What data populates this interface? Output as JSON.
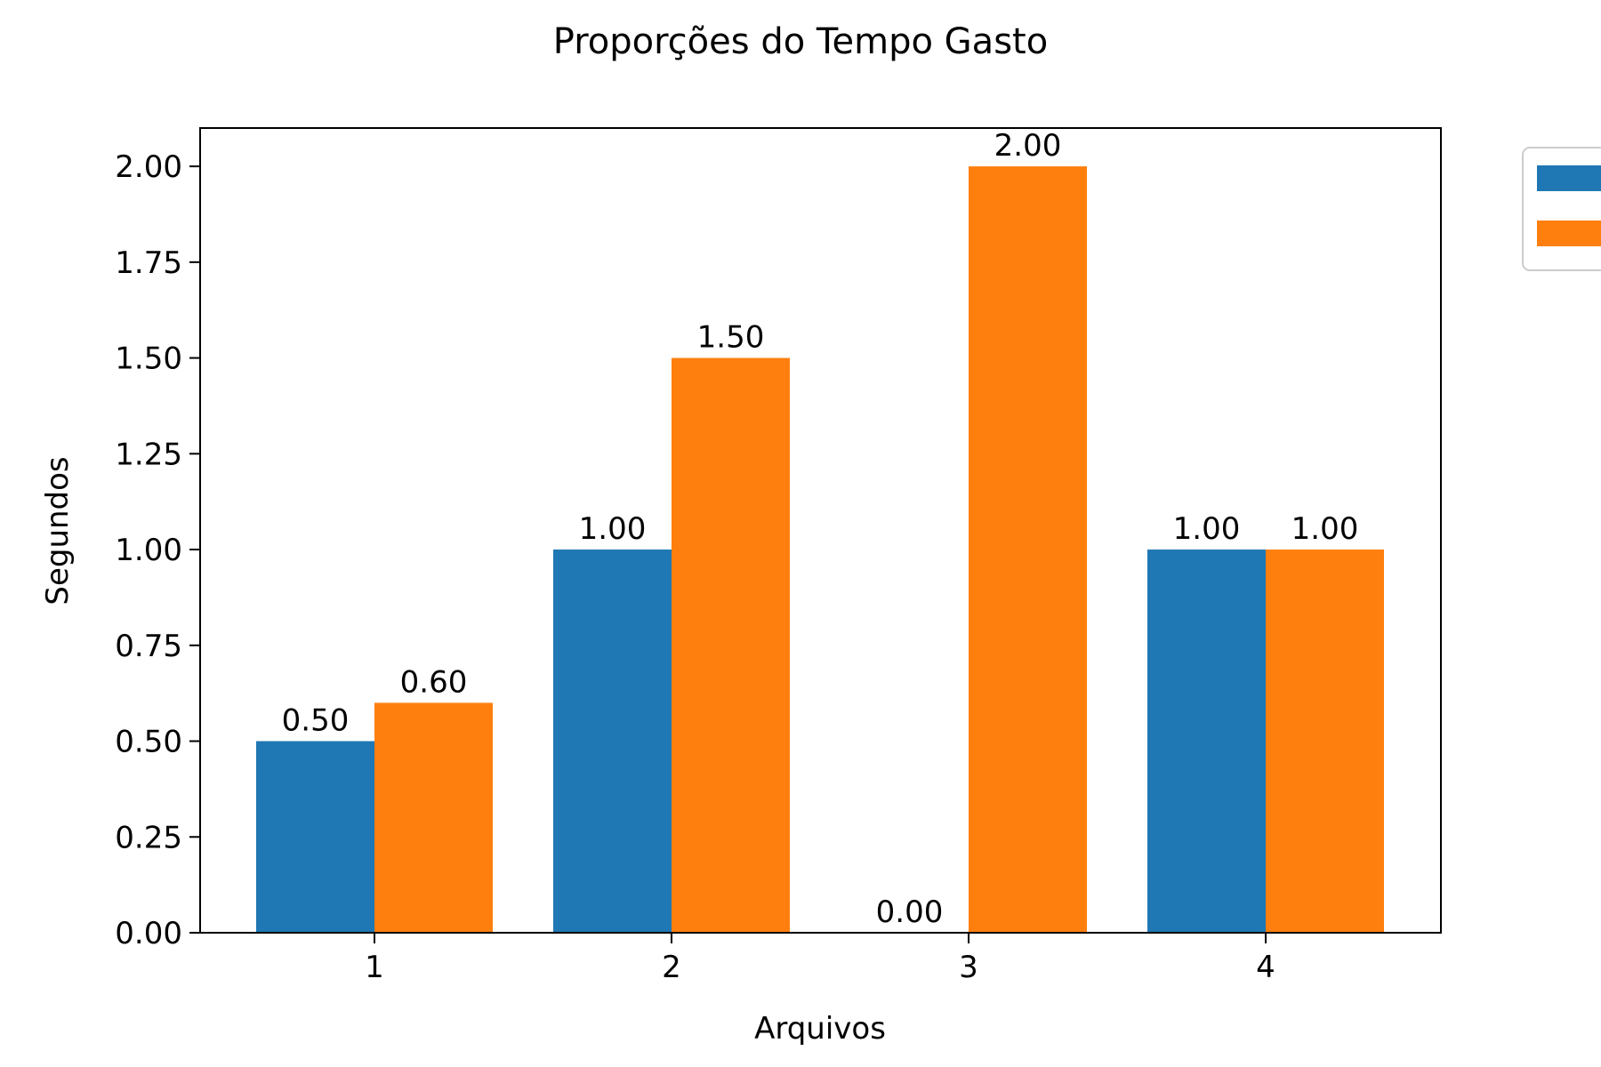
{
  "chart_data": {
    "type": "bar",
    "title": "Proporções do Tempo Gasto",
    "xlabel": "Arquivos",
    "ylabel": "Segundos",
    "categories": [
      "1",
      "2",
      "3",
      "4"
    ],
    "series": [
      {
        "values": [
          0.5,
          1.0,
          0.0,
          1.0
        ],
        "color": "#1f77b4"
      },
      {
        "values": [
          0.6,
          1.5,
          2.0,
          1.0
        ],
        "color": "#ff7f0e"
      }
    ],
    "data_labels": [
      [
        "0.50",
        "1.00",
        "0.00",
        "1.00"
      ],
      [
        "0.60",
        "1.50",
        "2.00",
        "1.00"
      ]
    ],
    "ylim": [
      0,
      2.1
    ],
    "yticks": [
      "0.00",
      "0.25",
      "0.50",
      "0.75",
      "1.00",
      "1.25",
      "1.50",
      "1.75",
      "2.00"
    ],
    "grid": false,
    "legend": {
      "placement": "outside-top-right"
    }
  }
}
